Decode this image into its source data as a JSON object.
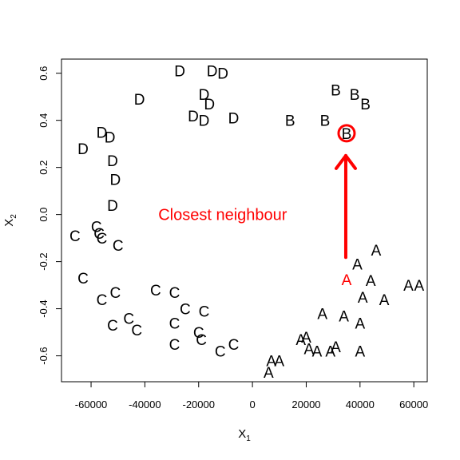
{
  "chart_data": {
    "type": "scatter",
    "xlabel": "X",
    "xlabel_sub": "1",
    "ylabel": "X",
    "ylabel_sub": "2",
    "xlim": [
      -71000,
      65000
    ],
    "ylim": [
      -0.71,
      0.66
    ],
    "xticks": [
      -60000,
      -40000,
      -20000,
      0,
      20000,
      40000,
      60000
    ],
    "xtick_labels": [
      "-60000",
      "-40000",
      "-20000",
      "0",
      "20000",
      "40000",
      "60000"
    ],
    "yticks": [
      -0.6,
      -0.4,
      -0.2,
      0.0,
      0.2,
      0.4,
      0.6
    ],
    "ytick_labels": [
      "-0.6",
      "-0.4",
      "-0.2",
      "0.0",
      "0.2",
      "0.4",
      "0.6"
    ],
    "grid": false,
    "legend": "none",
    "colors": {
      "points": "#000000",
      "highlight": "#ff0000"
    },
    "series": [
      {
        "label": "D",
        "points": [
          [
            -27000,
            0.61
          ],
          [
            -15000,
            0.61
          ],
          [
            -11000,
            0.6
          ],
          [
            -18000,
            0.51
          ],
          [
            -42000,
            0.49
          ],
          [
            -16000,
            0.47
          ],
          [
            -22000,
            0.42
          ],
          [
            -18000,
            0.4
          ],
          [
            -7000,
            0.41
          ],
          [
            -56000,
            0.35
          ],
          [
            -53000,
            0.33
          ],
          [
            -63000,
            0.28
          ],
          [
            -52000,
            0.23
          ],
          [
            -51000,
            0.15
          ],
          [
            -52000,
            0.04
          ]
        ]
      },
      {
        "label": "B",
        "points": [
          [
            31000,
            0.53
          ],
          [
            38000,
            0.51
          ],
          [
            42000,
            0.47
          ],
          [
            14000,
            0.4
          ],
          [
            27000,
            0.4
          ]
        ]
      },
      {
        "label": "C",
        "points": [
          [
            -58000,
            -0.05
          ],
          [
            -66000,
            -0.09
          ],
          [
            -57000,
            -0.08
          ],
          [
            -56000,
            -0.1
          ],
          [
            -50000,
            -0.13
          ],
          [
            -63000,
            -0.27
          ],
          [
            -36000,
            -0.32
          ],
          [
            -51000,
            -0.33
          ],
          [
            -29000,
            -0.33
          ],
          [
            -56000,
            -0.36
          ],
          [
            -25000,
            -0.4
          ],
          [
            -18000,
            -0.41
          ],
          [
            -46000,
            -0.44
          ],
          [
            -52000,
            -0.47
          ],
          [
            -29000,
            -0.46
          ],
          [
            -43000,
            -0.49
          ],
          [
            -20000,
            -0.5
          ],
          [
            -19000,
            -0.53
          ],
          [
            -29000,
            -0.55
          ],
          [
            -7000,
            -0.55
          ],
          [
            -12000,
            -0.58
          ]
        ]
      },
      {
        "label": "A",
        "points": [
          [
            46000,
            -0.15
          ],
          [
            39000,
            -0.21
          ],
          [
            44000,
            -0.28
          ],
          [
            58000,
            -0.3
          ],
          [
            62000,
            -0.3
          ],
          [
            41000,
            -0.35
          ],
          [
            49000,
            -0.36
          ],
          [
            26000,
            -0.42
          ],
          [
            34000,
            -0.43
          ],
          [
            40000,
            -0.46
          ],
          [
            20000,
            -0.52
          ],
          [
            18000,
            -0.53
          ],
          [
            21000,
            -0.57
          ],
          [
            31000,
            -0.56
          ],
          [
            24000,
            -0.58
          ],
          [
            29000,
            -0.58
          ],
          [
            40000,
            -0.58
          ],
          [
            7000,
            -0.62
          ],
          [
            10000,
            -0.62
          ],
          [
            6000,
            -0.67
          ]
        ]
      }
    ],
    "highlighted": {
      "query": {
        "label": "A",
        "x": 35000,
        "y": -0.27
      },
      "neighbour": {
        "label": "B",
        "x": 35000,
        "y": 0.345
      }
    },
    "annotation": {
      "text": "Closest neighbour",
      "x": -35000,
      "y": 0.0
    }
  }
}
